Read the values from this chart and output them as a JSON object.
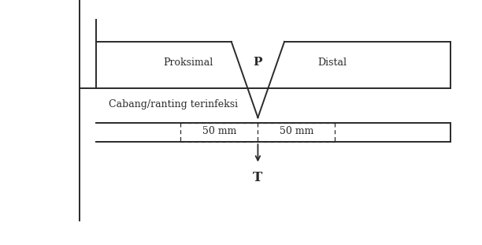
{
  "background_color": "#ffffff",
  "line_color": "#2a2a2a",
  "text_color": "#2a2a2a",
  "fig_width": 6.12,
  "fig_height": 3.11,
  "dpi": 100,
  "label_proksimal": "Proksimal",
  "label_distal": "Distal",
  "label_P": "P",
  "label_cabang": "Cabang/ranting terinfeksi",
  "label_50mm_left": "50 mm",
  "label_50mm_right": "50 mm",
  "label_T": "T"
}
